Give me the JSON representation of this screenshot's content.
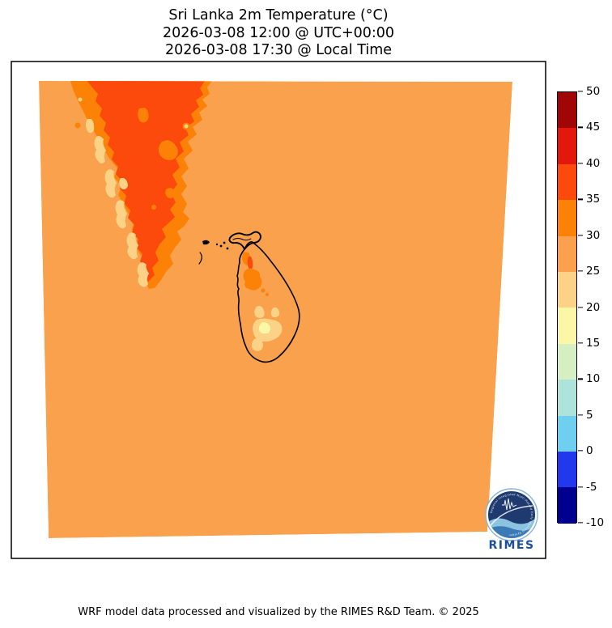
{
  "title": {
    "line1": "Sri Lanka 2m Temperature (°C)",
    "line2": "2026-03-08 12:00 @ UTC+00:00",
    "line3": "2026-03-08 17:30 @ Local Time"
  },
  "footer": "WRF model data processed and visualized by the RIMES R&D Team. © 2025",
  "logo": {
    "name": "RIMES",
    "ring_text": "Regional Integrated Multi-Hazard Early Warning System"
  },
  "colorbar": {
    "ticks": [
      "50",
      "45",
      "40",
      "35",
      "30",
      "25",
      "20",
      "15",
      "10",
      "5",
      "0",
      "-5",
      "-10"
    ],
    "segment_colors": [
      "#a00606",
      "#e3180c",
      "#fc4a0d",
      "#fb8207",
      "#f9a14d",
      "#fcd287",
      "#fbf7a6",
      "#d5efc2",
      "#ade3da",
      "#6ecff0",
      "#2138ec",
      "#00008f"
    ]
  },
  "colors": {
    "band-15-20": "#fbf7a6",
    "band-20-25": "#fcd287",
    "band-25-30": "#f9a14d",
    "band-30-35": "#fb8207",
    "band-35-40": "#fc4a0d",
    "coastline": "#000000",
    "axes-border": "#000000",
    "logo-navy": "#1e3a6e",
    "logo-blue": "#3c7ab5",
    "logo-light-blue": "#8cc3e0",
    "logo-text": "#1b4e9b",
    "logo-ring-stroke": "#88b4d8"
  },
  "chart_data": {
    "type": "heatmap",
    "title": "Sri Lanka 2m Temperature (°C)",
    "subtitle": [
      "2026-03-08 12:00 @ UTC+00:00",
      "2026-03-08 17:30 @ Local Time"
    ],
    "variable": "2m Temperature",
    "units": "°C",
    "colorbar_ticks": [
      50,
      45,
      40,
      35,
      30,
      25,
      20,
      15,
      10,
      5,
      0,
      -5,
      -10
    ],
    "colorbar_range": [
      -10,
      50
    ],
    "contour_interval": 5,
    "legend_position": "right-vertical",
    "grid": false,
    "visible_value_bands": {
      "ocean_and_plot_background_C": "25-30",
      "south_india_lowlands_C": "30-35",
      "south_india_hot_interior_C": "35-40",
      "south_india_western_ghats_C": "20-25",
      "sri_lanka_lowlands_C": "25-30",
      "sri_lanka_north_central_patches_C": "30-35 (small 35-40 spot near Jaffna)",
      "sri_lanka_central_hill_country_C": "20-25 with 15-20 core"
    }
  }
}
